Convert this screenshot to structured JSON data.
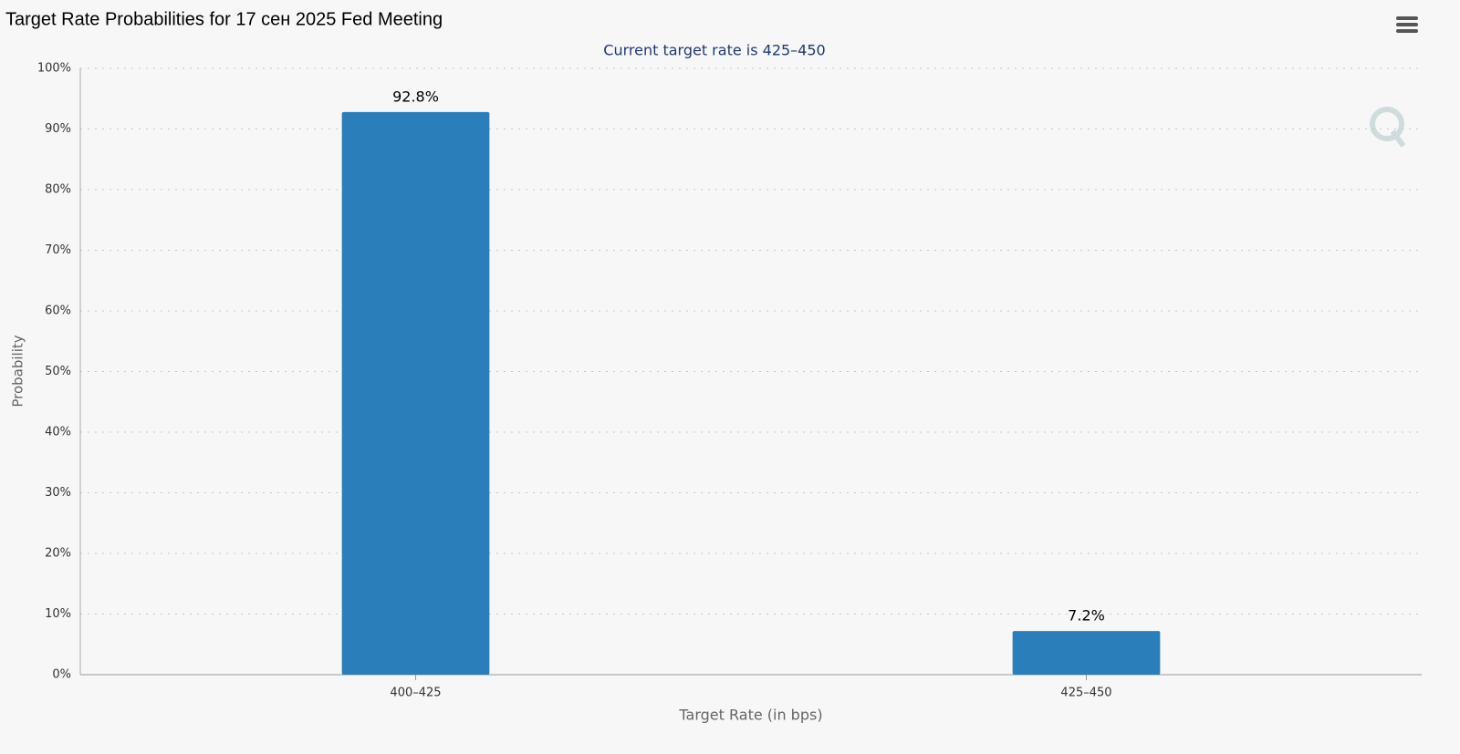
{
  "chart_data": {
    "type": "bar",
    "title": "Target Rate Probabilities for 17 сен 2025 Fed Meeting",
    "subtitle": "Current target rate is 425–450",
    "y_label": "Probability",
    "x_label": "Target Rate (in bps)",
    "categories": [
      "400–425",
      "425–450"
    ],
    "values": [
      92.8,
      7.2
    ],
    "value_labels": [
      "92.8%",
      "7.2%"
    ],
    "color": "#2a7fba",
    "ylim": [
      0,
      100
    ],
    "yticks": [
      {
        "value": 0,
        "label": "0%"
      },
      {
        "value": 10,
        "label": "10%"
      },
      {
        "value": 20,
        "label": "20%"
      },
      {
        "value": 30,
        "label": "30%"
      },
      {
        "value": 40,
        "label": "40%"
      },
      {
        "value": 50,
        "label": "50%"
      },
      {
        "value": 60,
        "label": "60%"
      },
      {
        "value": 70,
        "label": "70%"
      },
      {
        "value": 80,
        "label": "80%"
      },
      {
        "value": 90,
        "label": "90%"
      },
      {
        "value": 100,
        "label": "100%"
      }
    ],
    "grid": true
  }
}
